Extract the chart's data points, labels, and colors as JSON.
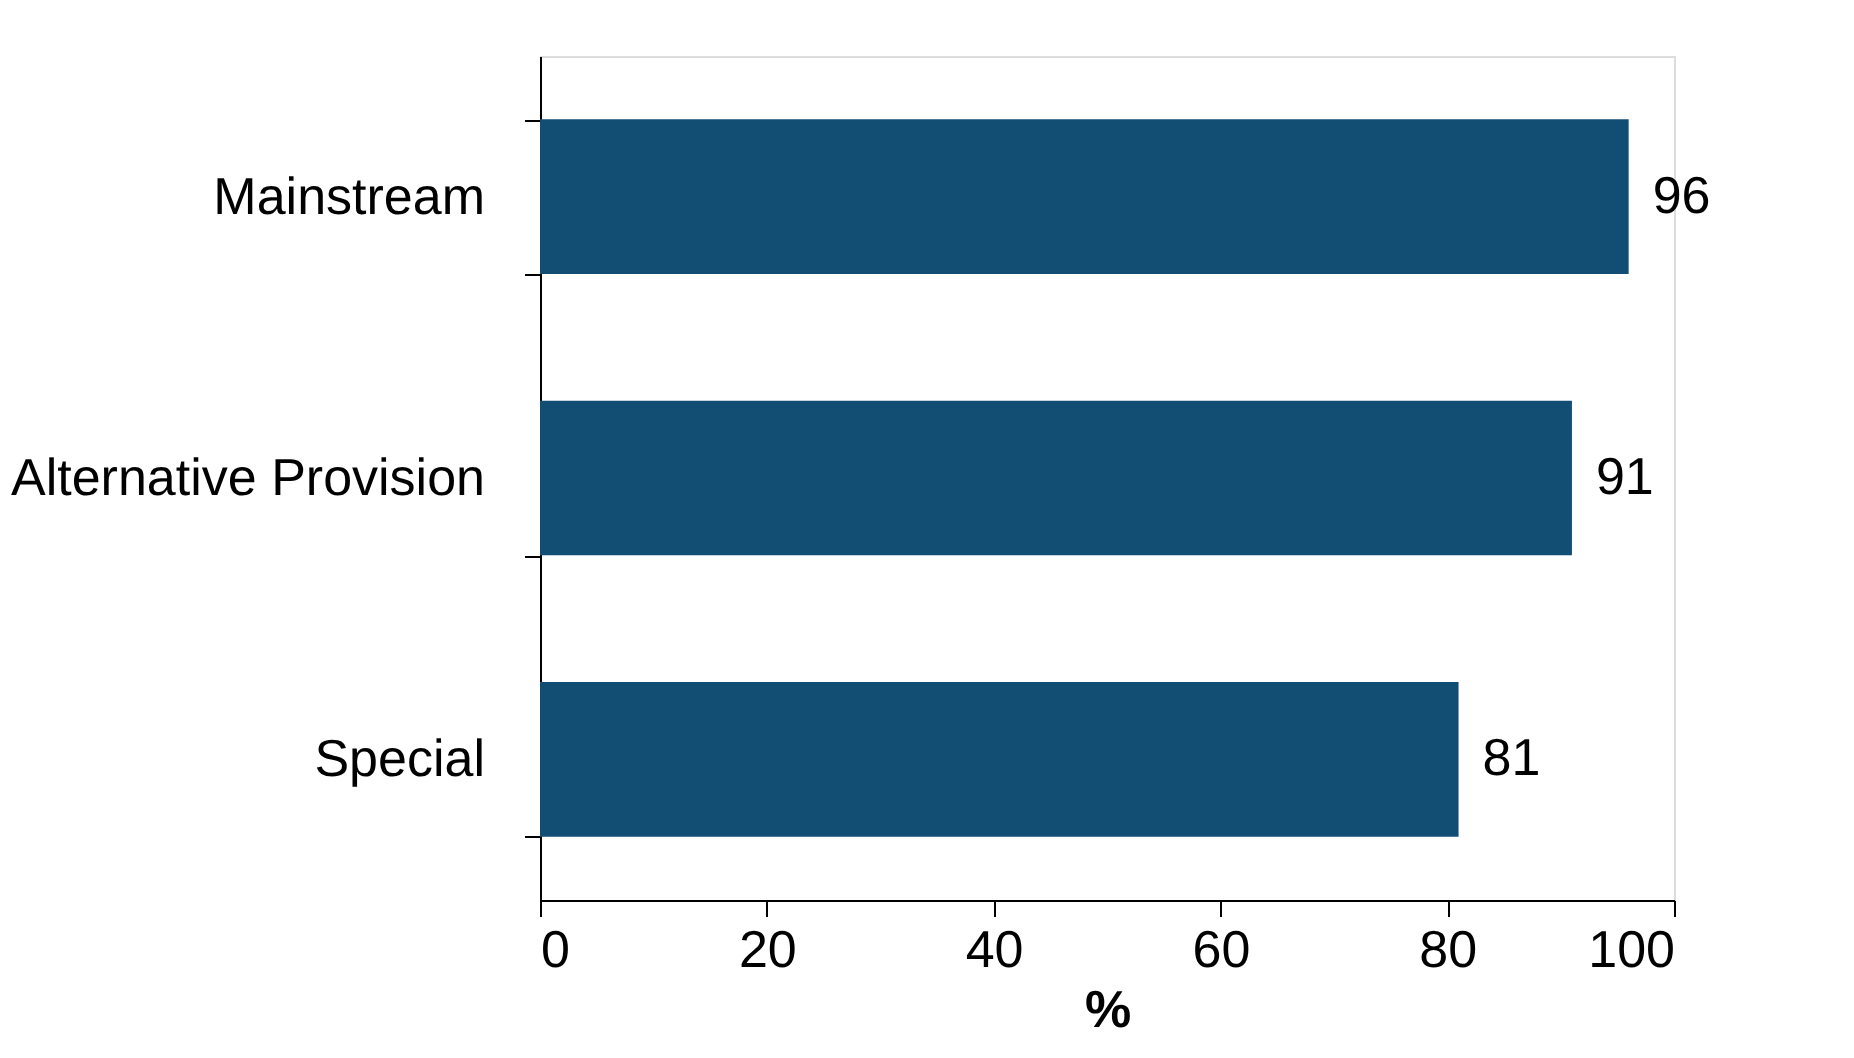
{
  "chart_data": {
    "type": "bar",
    "orientation": "horizontal",
    "xlabel": "%",
    "categories": [
      "Mainstream",
      "Alternative Provision",
      "Special"
    ],
    "values": [
      96,
      91,
      81
    ],
    "color": "#124e73",
    "xlim": [
      0,
      100
    ],
    "xticks": [
      0,
      20,
      40,
      60,
      80,
      100
    ],
    "grid": false,
    "data_labels": true
  }
}
